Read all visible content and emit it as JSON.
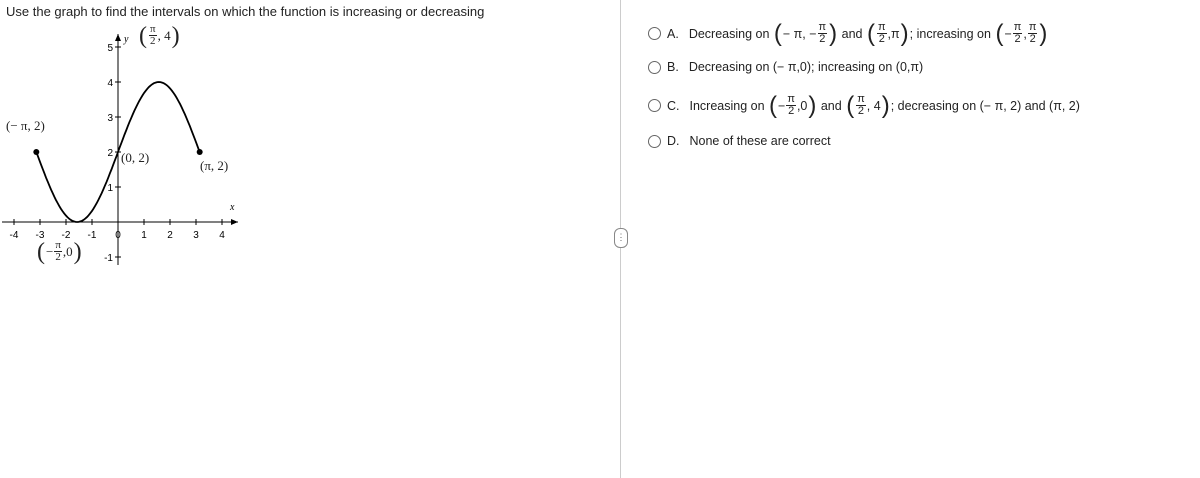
{
  "question": "Use the graph to find the intervals on which the function is increasing or decreasing",
  "graph": {
    "x_axis_label": "x",
    "y_axis_label": "y",
    "x_tick_labels": [
      "-4",
      "-3",
      "-2",
      "-1",
      "0",
      "1",
      "2",
      "3",
      "4"
    ],
    "y_tick_labels": [
      "5",
      "4",
      "3",
      "2",
      "1",
      "-1"
    ],
    "point_labels": [
      [
        "(− π, 2)"
      ],
      [
        "(",
        {
          "num": "π",
          "den": "2"
        },
        ", 4",
        ")"
      ],
      [
        "(0, 2)"
      ],
      [
        "(π, 2)"
      ],
      [
        "(",
        "−",
        {
          "num": "π",
          "den": "2"
        },
        ",0",
        ")"
      ]
    ]
  },
  "choices": [
    {
      "letter": "A.",
      "segments": [
        "Decreasing on ",
        "(",
        "− π, −",
        {
          "num": "π",
          "den": "2"
        },
        ")",
        " and ",
        "(",
        {
          "num": "π",
          "den": "2"
        },
        ",π",
        ")",
        "; increasing on ",
        "(",
        "−",
        {
          "num": "π",
          "den": "2"
        },
        ",",
        {
          "num": "π",
          "den": "2"
        },
        ")"
      ]
    },
    {
      "letter": "B.",
      "segments": [
        "Decreasing on (− π,0); increasing on (0,π)"
      ]
    },
    {
      "letter": "C.",
      "segments": [
        "Increasing on ",
        "(",
        "−",
        {
          "num": "π",
          "den": "2"
        },
        ",0",
        ")",
        " and ",
        "(",
        {
          "num": "π",
          "den": "2"
        },
        ", 4",
        ")",
        "; decreasing on (− π, 2) and (π, 2)"
      ]
    },
    {
      "letter": "D.",
      "segments": [
        "None of these are correct"
      ]
    }
  ]
}
